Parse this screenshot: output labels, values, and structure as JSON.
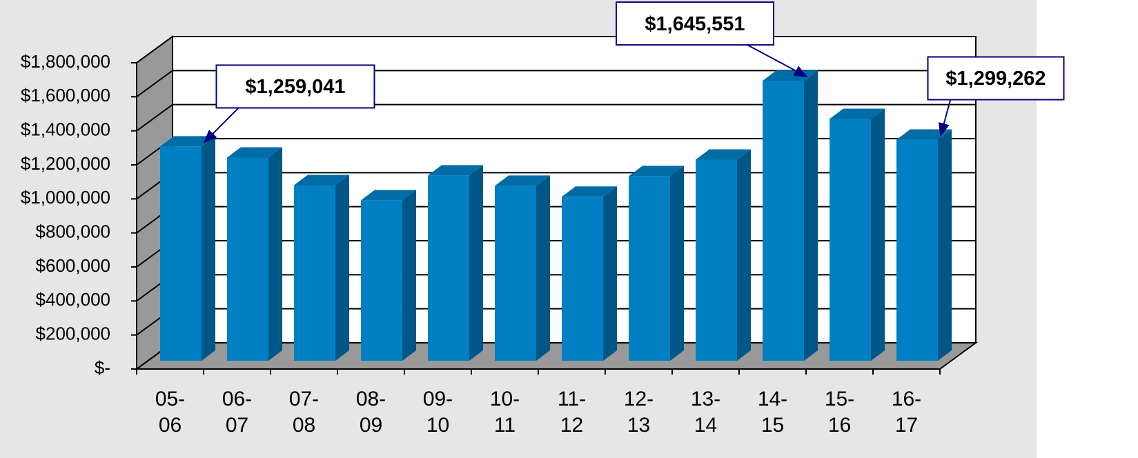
{
  "chart_data": {
    "type": "bar3d",
    "categories": [
      "05-06",
      "06-07",
      "07-08",
      "08-09",
      "09-10",
      "10-11",
      "11-12",
      "12-13",
      "13-14",
      "14-15",
      "15-16",
      "16-17"
    ],
    "values": [
      1259041,
      1194000,
      1032000,
      943000,
      1089000,
      1028000,
      964000,
      1085000,
      1182000,
      1645551,
      1421000,
      1299262
    ],
    "value_labels": [
      "$1,259,041",
      null,
      null,
      null,
      null,
      null,
      null,
      null,
      null,
      "$1,645,551",
      null,
      "$1,299,262"
    ],
    "color": "#0080c2",
    "ylim": [
      0,
      1800000
    ],
    "yticks": [
      {
        "value": 0,
        "label": "$-"
      },
      {
        "value": 200000,
        "label": "$200,000"
      },
      {
        "value": 400000,
        "label": "$400,000"
      },
      {
        "value": 600000,
        "label": "$600,000"
      },
      {
        "value": 800000,
        "label": "$800,000"
      },
      {
        "value": 1000000,
        "label": "$1,000,000"
      },
      {
        "value": 1200000,
        "label": "$1,200,000"
      },
      {
        "value": 1400000,
        "label": "$1,400,000"
      },
      {
        "value": 1600000,
        "label": "$1,600,000"
      },
      {
        "value": 1800000,
        "label": "$1,800,000"
      }
    ],
    "grid": true
  }
}
